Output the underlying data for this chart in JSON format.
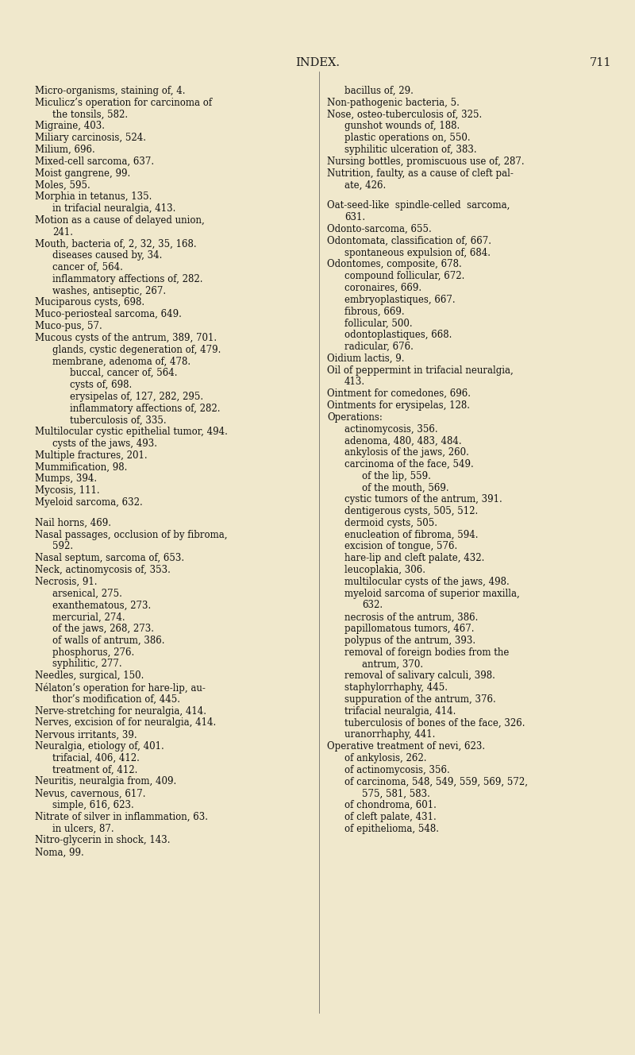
{
  "background_color": "#f0e8cc",
  "header_title": "INDEX.",
  "header_page": "711",
  "body_fontsize": 8.5,
  "left_column": [
    [
      0,
      "Micro-organisms, staining of, 4."
    ],
    [
      0,
      "Miculicz’s operation for carcinoma of"
    ],
    [
      1,
      "the tonsils, 582."
    ],
    [
      0,
      "Migraine, 403."
    ],
    [
      0,
      "Miliary carcinosis, 524."
    ],
    [
      0,
      "Milium, 696."
    ],
    [
      0,
      "Mixed-cell sarcoma, 637."
    ],
    [
      0,
      "Moist gangrene, 99."
    ],
    [
      0,
      "Moles, 595."
    ],
    [
      0,
      "Morphia in tetanus, 135."
    ],
    [
      1,
      "in trifacial neuralgia, 413."
    ],
    [
      0,
      "Motion as a cause of delayed union,"
    ],
    [
      1,
      "241."
    ],
    [
      0,
      "Mouth, bacteria of, 2, 32, 35, 168."
    ],
    [
      1,
      "diseases caused by, 34."
    ],
    [
      1,
      "cancer of, 564."
    ],
    [
      1,
      "inflammatory affections of, 282."
    ],
    [
      1,
      "washes, antiseptic, 267."
    ],
    [
      0,
      "Muciparous cysts, 698."
    ],
    [
      0,
      "Muco-periosteal sarcoma, 649."
    ],
    [
      0,
      "Muco-pus, 57."
    ],
    [
      0,
      "Mucous cysts of the antrum, 389, 701."
    ],
    [
      1,
      "glands, cystic degeneration of, 479."
    ],
    [
      1,
      "membrane, adenoma of, 478."
    ],
    [
      2,
      "buccal, cancer of, 564."
    ],
    [
      2,
      "cysts of, 698."
    ],
    [
      2,
      "erysipelas of, 127, 282, 295."
    ],
    [
      2,
      "inflammatory affections of, 282."
    ],
    [
      2,
      "tuberculosis of, 335."
    ],
    [
      0,
      "Multilocular cystic epithelial tumor, 494."
    ],
    [
      1,
      "cysts of the jaws, 493."
    ],
    [
      0,
      "Multiple fractures, 201."
    ],
    [
      0,
      "Mummification, 98."
    ],
    [
      0,
      "Mumps, 394."
    ],
    [
      0,
      "Mycosis, 111."
    ],
    [
      0,
      "Myeloid sarcoma, 632."
    ],
    [
      -1,
      ""
    ],
    [
      0,
      "Nail horns, 469."
    ],
    [
      0,
      "Nasal passages, occlusion of by fibroma,"
    ],
    [
      1,
      "592."
    ],
    [
      0,
      "Nasal septum, sarcoma of, 653."
    ],
    [
      0,
      "Neck, actinomycosis of, 353."
    ],
    [
      0,
      "Necrosis, 91."
    ],
    [
      1,
      "arsenical, 275."
    ],
    [
      1,
      "exanthematous, 273."
    ],
    [
      1,
      "mercurial, 274."
    ],
    [
      1,
      "of the jaws, 268, 273."
    ],
    [
      1,
      "of walls of antrum, 386."
    ],
    [
      1,
      "phosphorus, 276."
    ],
    [
      1,
      "syphilitic, 277."
    ],
    [
      0,
      "Needles, surgical, 150."
    ],
    [
      0,
      "Nélaton’s operation for hare-lip, au-"
    ],
    [
      1,
      "thor’s modification of, 445."
    ],
    [
      0,
      "Nerve-stretching for neuralgia, 414."
    ],
    [
      0,
      "Nerves, excision of for neuralgia, 414."
    ],
    [
      0,
      "Nervous irritants, 39."
    ],
    [
      0,
      "Neuralgia, etiology of, 401."
    ],
    [
      1,
      "trifacial, 406, 412."
    ],
    [
      1,
      "treatment of, 412."
    ],
    [
      0,
      "Neuritis, neuralgia from, 409."
    ],
    [
      0,
      "Nevus, cavernous, 617."
    ],
    [
      1,
      "simple, 616, 623."
    ],
    [
      0,
      "Nitrate of silver in inflammation, 63."
    ],
    [
      1,
      "in ulcers, 87."
    ],
    [
      0,
      "Nitro-glycerin in shock, 143."
    ],
    [
      0,
      "Noma, 99."
    ]
  ],
  "right_column": [
    [
      1,
      "bacillus of, 29."
    ],
    [
      0,
      "Non-pathogenic bacteria, 5."
    ],
    [
      0,
      "Nose, osteo-tuberculosis of, 325."
    ],
    [
      1,
      "gunshot wounds of, 188."
    ],
    [
      1,
      "plastic operations on, 550."
    ],
    [
      1,
      "syphilitic ulceration of, 383."
    ],
    [
      0,
      "Nursing bottles, promiscuous use of, 287."
    ],
    [
      0,
      "Nutrition, faulty, as a cause of cleft pal-"
    ],
    [
      1,
      "ate, 426."
    ],
    [
      -1,
      ""
    ],
    [
      0,
      "Oat-seed-like  spindle-celled  sarcoma,"
    ],
    [
      1,
      "631."
    ],
    [
      0,
      "Odonto-sarcoma, 655."
    ],
    [
      0,
      "Odontomata, classification of, 667."
    ],
    [
      1,
      "spontaneous expulsion of, 684."
    ],
    [
      0,
      "Odontomes, composite, 678."
    ],
    [
      1,
      "compound follicular, 672."
    ],
    [
      1,
      "coronaires, 669."
    ],
    [
      1,
      "embryoplastiques, 667."
    ],
    [
      1,
      "fibrous, 669."
    ],
    [
      1,
      "follicular, 500."
    ],
    [
      1,
      "odontoplastiques, 668."
    ],
    [
      1,
      "radicular, 676."
    ],
    [
      0,
      "Oidium lactis, 9."
    ],
    [
      0,
      "Oil of peppermint in trifacial neuralgia,"
    ],
    [
      1,
      "413."
    ],
    [
      0,
      "Ointment for comedones, 696."
    ],
    [
      0,
      "Ointments for erysipelas, 128."
    ],
    [
      0,
      "Operations:"
    ],
    [
      1,
      "actinomycosis, 356."
    ],
    [
      1,
      "adenoma, 480, 483, 484."
    ],
    [
      1,
      "ankylosis of the jaws, 260."
    ],
    [
      1,
      "carcinoma of the face, 549."
    ],
    [
      2,
      "of the lip, 559."
    ],
    [
      2,
      "of the mouth, 569."
    ],
    [
      1,
      "cystic tumors of the antrum, 391."
    ],
    [
      1,
      "dentigerous cysts, 505, 512."
    ],
    [
      1,
      "dermoid cysts, 505."
    ],
    [
      1,
      "enucleation of fibroma, 594."
    ],
    [
      1,
      "excision of tongue, 576."
    ],
    [
      1,
      "hare-lip and cleft palate, 432."
    ],
    [
      1,
      "leucoplakia, 306."
    ],
    [
      1,
      "multilocular cysts of the jaws, 498."
    ],
    [
      1,
      "myeloid sarcoma of superior maxilla,"
    ],
    [
      2,
      "632."
    ],
    [
      1,
      "necrosis of the antrum, 386."
    ],
    [
      1,
      "papillomatous tumors, 467."
    ],
    [
      1,
      "polypus of the antrum, 393."
    ],
    [
      1,
      "removal of foreign bodies from the"
    ],
    [
      2,
      "antrum, 370."
    ],
    [
      1,
      "removal of salivary calculi, 398."
    ],
    [
      1,
      "staphylorrhaphy, 445."
    ],
    [
      1,
      "suppuration of the antrum, 376."
    ],
    [
      1,
      "trifacial neuralgia, 414."
    ],
    [
      1,
      "tuberculosis of bones of the face, 326."
    ],
    [
      1,
      "uranorrhaphy, 441."
    ],
    [
      0,
      "Operative treatment of nevi, 623."
    ],
    [
      1,
      "of ankylosis, 262."
    ],
    [
      1,
      "of actinomycosis, 356."
    ],
    [
      1,
      "of carcinoma, 548, 549, 559, 569, 572,"
    ],
    [
      2,
      "575, 581, 583."
    ],
    [
      1,
      "of chondroma, 601."
    ],
    [
      1,
      "of cleft palate, 431."
    ],
    [
      1,
      "of epithelioma, 548."
    ]
  ]
}
